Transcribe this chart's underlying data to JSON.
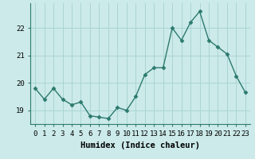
{
  "x": [
    0,
    1,
    2,
    3,
    4,
    5,
    6,
    7,
    8,
    9,
    10,
    11,
    12,
    13,
    14,
    15,
    16,
    17,
    18,
    19,
    20,
    21,
    22,
    23
  ],
  "y": [
    19.8,
    19.4,
    19.8,
    19.4,
    19.2,
    19.3,
    18.8,
    18.75,
    18.7,
    19.1,
    19.0,
    19.5,
    20.3,
    20.55,
    20.55,
    22.0,
    21.55,
    22.2,
    22.6,
    21.55,
    21.3,
    21.05,
    20.25,
    19.65
  ],
  "line_color": "#2d7a6e",
  "marker": "D",
  "markersize": 2.5,
  "linewidth": 1.0,
  "bg_color": "#cceaea",
  "grid_color": "#aad4d4",
  "xlabel": "Humidex (Indice chaleur)",
  "ylim": [
    18.5,
    22.9
  ],
  "yticks": [
    19,
    20,
    21,
    22
  ],
  "xticks": [
    0,
    1,
    2,
    3,
    4,
    5,
    6,
    7,
    8,
    9,
    10,
    11,
    12,
    13,
    14,
    15,
    16,
    17,
    18,
    19,
    20,
    21,
    22,
    23
  ],
  "xlabel_fontsize": 7.5,
  "tick_fontsize": 6.5,
  "spine_color": "#2d7a6e"
}
